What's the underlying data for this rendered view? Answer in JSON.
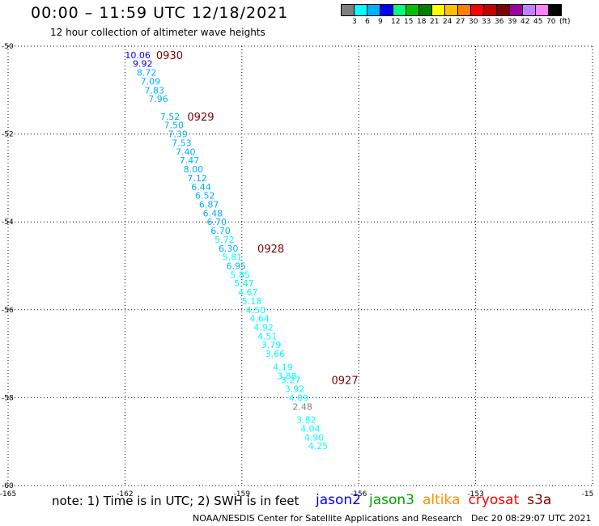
{
  "header": {
    "title": "00:00 – 11:59 UTC 12/18/2021",
    "subtitle": "12 hour collection of altimeter wave heights"
  },
  "colorbar": {
    "colors": [
      "#808080",
      "#00ffff",
      "#00b0ff",
      "#0000ff",
      "#00ff80",
      "#00c000",
      "#008000",
      "#ffff00",
      "#ffc000",
      "#ff8000",
      "#ff0000",
      "#c00000",
      "#800000",
      "#a000a0",
      "#c080ff",
      "#ff80ff",
      "#000000"
    ],
    "labels": [
      "3",
      "6",
      "9",
      "12",
      "15",
      "18",
      "21",
      "24",
      "27",
      "30",
      "33",
      "36",
      "39",
      "42",
      "45",
      "70",
      "(ft)"
    ]
  },
  "chart_data": {
    "type": "scatter",
    "xlim": [
      -165,
      -150
    ],
    "ylim": [
      -60,
      -50
    ],
    "x_ticks": [
      "-165",
      "-162",
      "-159",
      "-156",
      "-153",
      "-15"
    ],
    "y_ticks": [
      "-50",
      "-52",
      "-54",
      "-56",
      "-58",
      "-60"
    ],
    "grid": true,
    "points": [
      {
        "lon": -162.0,
        "lat": -50.2,
        "label": "10.06",
        "color": "#0000ff"
      },
      {
        "lon": -161.8,
        "lat": -50.4,
        "label": "9.92",
        "color": "#0000ff"
      },
      {
        "lon": -161.7,
        "lat": -50.6,
        "label": "8.72",
        "color": "#00b0ff"
      },
      {
        "lon": -161.6,
        "lat": -50.8,
        "label": "7.09",
        "color": "#00b0ff"
      },
      {
        "lon": -161.5,
        "lat": -51.0,
        "label": "7.83",
        "color": "#00b0ff"
      },
      {
        "lon": -161.4,
        "lat": -51.2,
        "label": "7.96",
        "color": "#00b0ff"
      },
      {
        "lon": -161.1,
        "lat": -51.6,
        "label": "7.52",
        "color": "#00b0ff"
      },
      {
        "lon": -161.0,
        "lat": -51.8,
        "label": "7.50",
        "color": "#00b0ff"
      },
      {
        "lon": -160.9,
        "lat": -52.0,
        "label": "7.39",
        "color": "#00b0ff"
      },
      {
        "lon": -160.8,
        "lat": -52.2,
        "label": "7.53",
        "color": "#00b0ff"
      },
      {
        "lon": -160.7,
        "lat": -52.4,
        "label": "7.40",
        "color": "#00b0ff"
      },
      {
        "lon": -160.6,
        "lat": -52.6,
        "label": "7.47",
        "color": "#00b0ff"
      },
      {
        "lon": -160.5,
        "lat": -52.8,
        "label": "8.00",
        "color": "#00b0ff"
      },
      {
        "lon": -160.4,
        "lat": -53.0,
        "label": "7.12",
        "color": "#00b0ff"
      },
      {
        "lon": -160.3,
        "lat": -53.2,
        "label": "6.44",
        "color": "#00b0ff"
      },
      {
        "lon": -160.2,
        "lat": -53.4,
        "label": "6.52",
        "color": "#00b0ff"
      },
      {
        "lon": -160.1,
        "lat": -53.6,
        "label": "6.87",
        "color": "#00b0ff"
      },
      {
        "lon": -160.0,
        "lat": -53.8,
        "label": "6.48",
        "color": "#00b0ff"
      },
      {
        "lon": -159.9,
        "lat": -54.0,
        "label": "6.70",
        "color": "#00b0ff"
      },
      {
        "lon": -159.8,
        "lat": -54.2,
        "label": "6.70",
        "color": "#00b0ff"
      },
      {
        "lon": -159.7,
        "lat": -54.4,
        "label": "5.72",
        "color": "#00ffff"
      },
      {
        "lon": -159.6,
        "lat": -54.6,
        "label": "6.30",
        "color": "#00b0ff"
      },
      {
        "lon": -159.5,
        "lat": -54.8,
        "label": "5.81",
        "color": "#00ffff"
      },
      {
        "lon": -159.4,
        "lat": -55.0,
        "label": "6.95",
        "color": "#00b0ff"
      },
      {
        "lon": -159.3,
        "lat": -55.2,
        "label": "5.85",
        "color": "#00ffff"
      },
      {
        "lon": -159.2,
        "lat": -55.4,
        "label": "5.47",
        "color": "#00ffff"
      },
      {
        "lon": -159.1,
        "lat": -55.6,
        "label": "4.67",
        "color": "#00ffff"
      },
      {
        "lon": -159.0,
        "lat": -55.8,
        "label": "5.18",
        "color": "#00ffff"
      },
      {
        "lon": -158.9,
        "lat": -56.0,
        "label": "4.50",
        "color": "#00ffff"
      },
      {
        "lon": -158.8,
        "lat": -56.2,
        "label": "4.64",
        "color": "#00ffff"
      },
      {
        "lon": -158.7,
        "lat": -56.4,
        "label": "4.92",
        "color": "#00ffff"
      },
      {
        "lon": -158.6,
        "lat": -56.6,
        "label": "4.51",
        "color": "#00ffff"
      },
      {
        "lon": -158.5,
        "lat": -56.8,
        "label": "3.79",
        "color": "#00ffff"
      },
      {
        "lon": -158.4,
        "lat": -57.0,
        "label": "3.66",
        "color": "#00ffff"
      },
      {
        "lon": -158.2,
        "lat": -57.3,
        "label": "4.19",
        "color": "#00ffff"
      },
      {
        "lon": -158.1,
        "lat": -57.5,
        "label": "3.88",
        "color": "#00ffff"
      },
      {
        "lon": -158.0,
        "lat": -57.6,
        "label": "3.27",
        "color": "#00ffff"
      },
      {
        "lon": -157.9,
        "lat": -57.8,
        "label": "3.92",
        "color": "#00ffff"
      },
      {
        "lon": -157.8,
        "lat": -58.0,
        "label": "4.09",
        "color": "#00ffff"
      },
      {
        "lon": -157.7,
        "lat": -58.2,
        "label": "2.48",
        "color": "#808080"
      },
      {
        "lon": -157.6,
        "lat": -58.5,
        "label": "3.82",
        "color": "#00ffff"
      },
      {
        "lon": -157.5,
        "lat": -58.7,
        "label": "4.04",
        "color": "#00ffff"
      },
      {
        "lon": -157.4,
        "lat": -58.9,
        "label": "4.90",
        "color": "#00ffff"
      },
      {
        "lon": -157.3,
        "lat": -59.1,
        "label": "4.25",
        "color": "#00ffff"
      }
    ],
    "time_labels": [
      {
        "lon": -161.2,
        "lat": -50.2,
        "label": "0930"
      },
      {
        "lon": -160.4,
        "lat": -51.6,
        "label": "0929"
      },
      {
        "lon": -158.6,
        "lat": -54.6,
        "label": "0928"
      },
      {
        "lon": -156.7,
        "lat": -57.6,
        "label": "0927"
      }
    ]
  },
  "footer": {
    "note": "note:  1) Time is in UTC;  2) SWH is in feet",
    "satellites": [
      {
        "name": "jason2",
        "color": "#0000ff"
      },
      {
        "name": "jason3",
        "color": "#00a000"
      },
      {
        "name": "altika",
        "color": "#ff9000"
      },
      {
        "name": "cryosat",
        "color": "#ff0000"
      },
      {
        "name": "s3a",
        "color": "#800000"
      }
    ],
    "credit": "NOAA/NESDIS Center for Satellite Applications and Research",
    "timestamp": "Dec 20 08:29:07 UTC 2021"
  }
}
